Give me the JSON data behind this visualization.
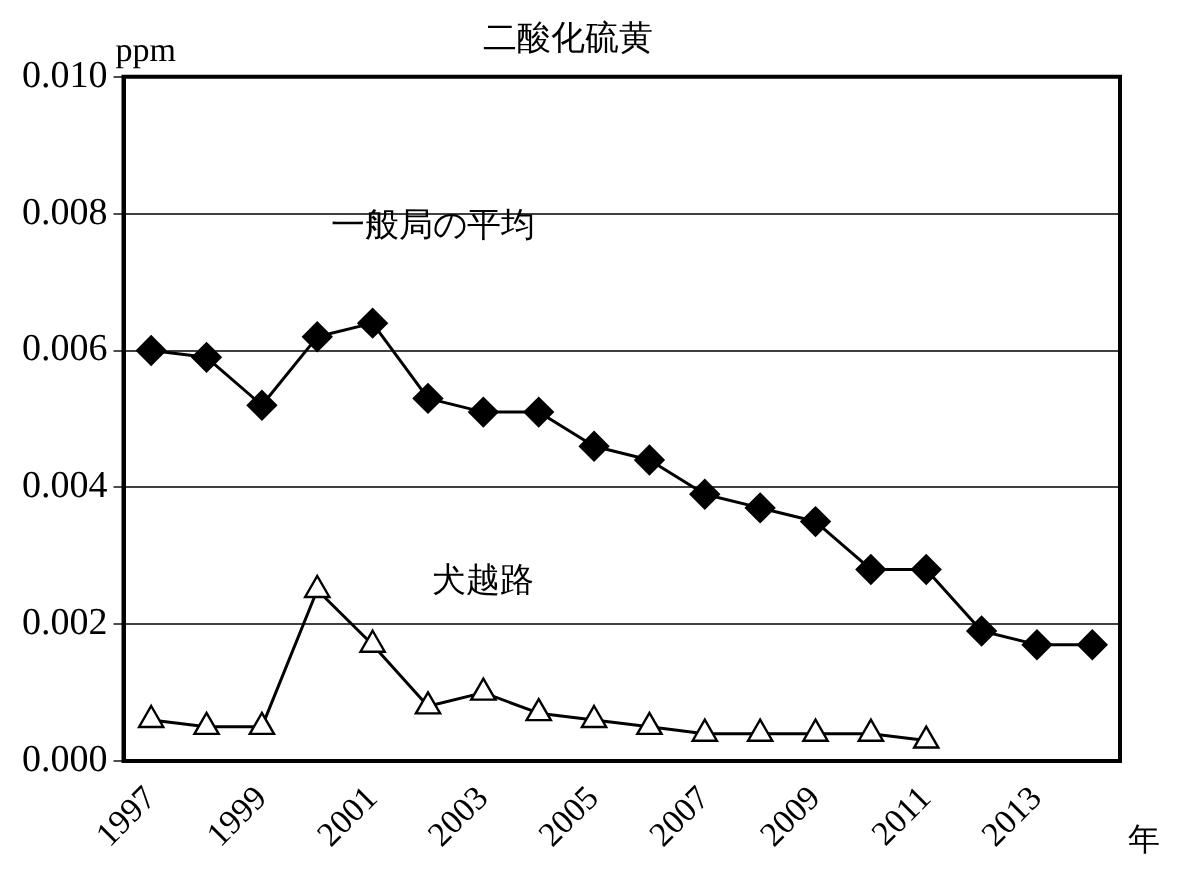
{
  "chart_data": {
    "type": "line",
    "title": "二酸化硫黄",
    "ylabel": "ppm",
    "xlabel": "年",
    "categories": [
      "1997",
      null,
      "1999",
      null,
      "2001",
      null,
      "2003",
      null,
      "2005",
      null,
      "2007",
      null,
      "2009",
      null,
      "2011",
      null,
      "2013",
      null
    ],
    "series": [
      {
        "name": "一般局の平均",
        "color": "#000000",
        "marker": "diamond",
        "values": [
          0.006,
          0.0059,
          0.0052,
          0.0062,
          0.0064,
          0.0053,
          0.0051,
          0.0051,
          0.0046,
          0.0044,
          0.0039,
          0.0037,
          0.0035,
          0.0028,
          0.0028,
          0.0019,
          0.0017,
          0.0017
        ]
      },
      {
        "name": "犬越路",
        "color": "#000000",
        "marker": "triangle",
        "values": [
          0.0006,
          0.0005,
          0.0005,
          0.0025,
          0.0017,
          0.0008,
          0.001,
          0.0007,
          0.0006,
          0.0005,
          0.0004,
          0.0004,
          0.0004,
          0.0004,
          0.0003,
          null,
          null,
          null
        ]
      }
    ],
    "ylim": [
      0,
      0.01
    ],
    "yticks": [
      {
        "value": 0,
        "label": "0.000"
      },
      {
        "value": 0.002,
        "label": "0.002"
      },
      {
        "value": 0.004,
        "label": "0.004"
      },
      {
        "value": 0.006,
        "label": "0.006"
      },
      {
        "value": 0.008,
        "label": "0.008"
      },
      {
        "value": 0.01,
        "label": "0.010"
      }
    ],
    "grid": "y",
    "legend": false
  }
}
